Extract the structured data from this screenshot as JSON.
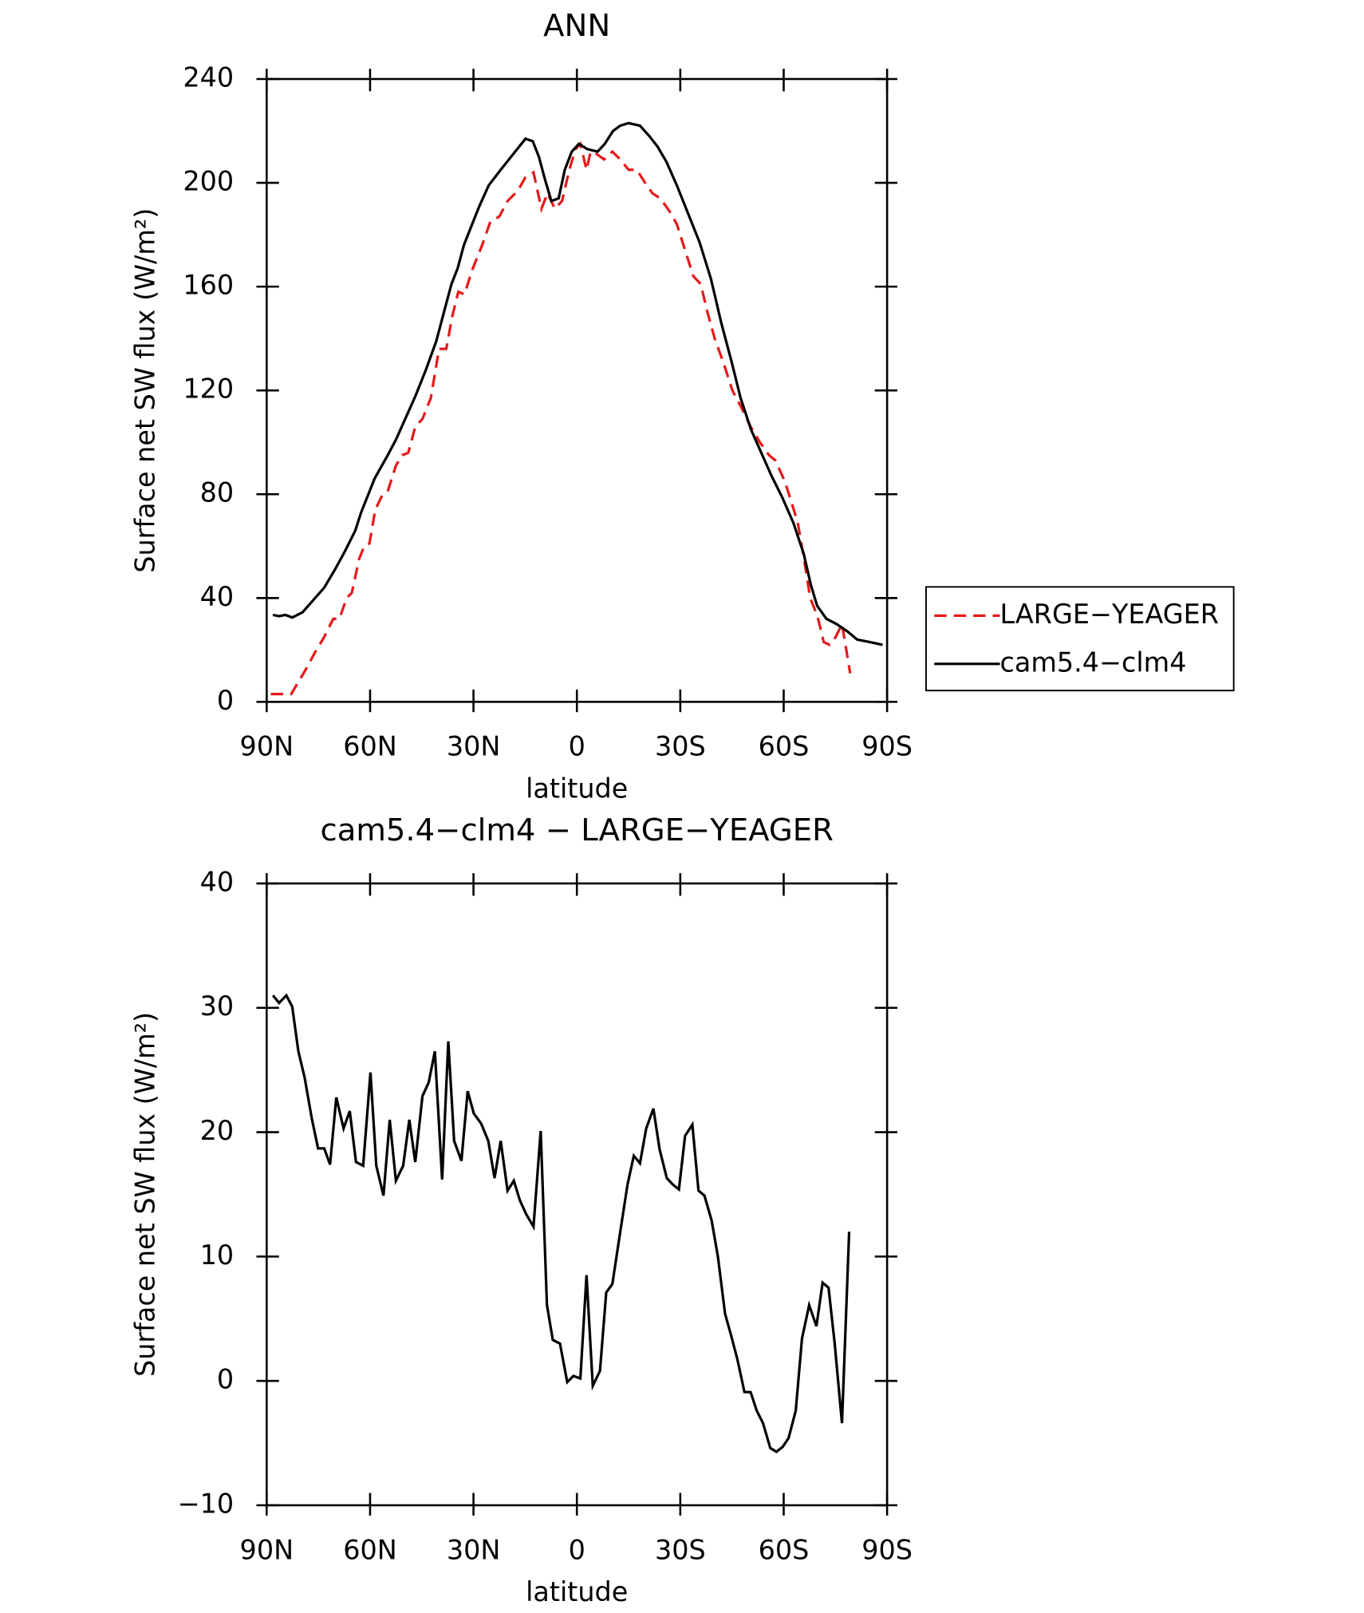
{
  "chart_data": [
    {
      "type": "line",
      "title": "ANN",
      "xlabel": "latitude",
      "ylabel": "Surface net SW flux (W/m²)",
      "xlim": [
        90,
        -90
      ],
      "xticks": [
        {
          "value": 90,
          "label": "90N"
        },
        {
          "value": 60,
          "label": "60N"
        },
        {
          "value": 30,
          "label": "30N"
        },
        0,
        {
          "value": -30,
          "label": "30S"
        },
        {
          "value": -60,
          "label": "60S"
        },
        {
          "value": -90,
          "label": "90S"
        }
      ],
      "ylim": [
        0,
        240
      ],
      "yticks": [
        0,
        40,
        80,
        120,
        160,
        200,
        240
      ],
      "legend": "right",
      "series": [
        {
          "name": "LARGE−YEAGER",
          "color": "#e41a1c",
          "dash": true,
          "x": [
            88.8,
            82.9,
            79.3,
            76.0,
            73.3,
            70.7,
            68.9,
            66.8,
            65.3,
            63.2,
            61.7,
            60.2,
            58.5,
            56.7,
            54.9,
            52.5,
            50.7,
            48.9,
            46.9,
            44.8,
            42.4,
            40.0,
            37.9,
            36.1,
            34.4,
            32.6,
            30.5,
            27.5,
            25.1,
            22.5,
            20.1,
            17.1,
            15.0,
            12.6,
            10.3,
            8.5,
            6.4,
            4.3,
            2.2,
            0.4,
            -1.0,
            -2.8,
            -4.0,
            -5.8,
            -7.9,
            -10.3,
            -12.6,
            -15.0,
            -17.4,
            -19.8,
            -21.9,
            -24.2,
            -26.9,
            -29.0,
            -31.4,
            -33.8,
            -35.9,
            -37.9,
            -40.0,
            -42.7,
            -45.1,
            -47.5,
            -50.4,
            -53.1,
            -55.8,
            -57.6,
            -60.3,
            -62.0,
            -64.1,
            -65.9,
            -67.7,
            -69.8,
            -71.6,
            -73.3,
            -75.1,
            -76.9,
            -79.3
          ],
          "values": [
            3,
            3,
            11,
            19,
            25,
            32,
            32,
            40,
            42,
            55,
            60,
            61,
            74,
            79,
            81,
            91,
            95,
            96,
            106,
            109,
            117,
            136,
            136,
            149,
            158,
            157,
            166,
            176,
            185,
            187,
            193,
            197,
            202,
            204,
            190,
            196,
            190,
            193,
            205,
            213,
            215,
            205,
            212,
            211,
            209,
            212,
            209,
            205,
            205,
            200,
            196,
            194,
            189,
            184,
            174,
            164,
            161,
            150,
            140,
            130,
            120,
            114,
            106,
            100,
            95,
            93,
            85,
            78,
            69,
            55,
            40,
            33,
            23,
            22,
            25,
            30,
            11
          ]
        },
        {
          "name": "cam5.4−clm4",
          "color": "#000000",
          "dash": false,
          "x": [
            88.2,
            86.4,
            84.6,
            82.6,
            79.6,
            76.6,
            73.3,
            70.2,
            67.3,
            64.3,
            62.6,
            60.2,
            58.7,
            56.6,
            54.9,
            52.5,
            49.8,
            46.8,
            43.8,
            40.8,
            38.2,
            36.4,
            34.6,
            32.8,
            29.8,
            28.3,
            25.6,
            22.1,
            18.5,
            14.9,
            12.8,
            11.0,
            9.2,
            7.4,
            5.3,
            3.5,
            1.5,
            -0.6,
            -3.0,
            -6.0,
            -8.1,
            -10.5,
            -12.6,
            -15.0,
            -18.3,
            -21.0,
            -23.4,
            -26.0,
            -29.0,
            -32.0,
            -35.6,
            -38.9,
            -41.9,
            -44.9,
            -47.5,
            -50.5,
            -53.5,
            -56.5,
            -59.5,
            -62.8,
            -65.8,
            -67.9,
            -69.7,
            -72.4,
            -75.3,
            -78.6,
            -81.3,
            -85.1,
            -88.7
          ],
          "values": [
            33.5,
            33,
            33.5,
            32.5,
            34.5,
            39,
            44,
            51,
            58,
            66,
            73,
            81,
            86,
            91,
            95,
            101,
            109,
            118,
            128,
            139,
            152,
            161,
            167,
            176,
            186,
            191,
            199,
            205,
            211,
            217,
            216,
            210,
            201,
            193,
            194,
            205,
            212,
            215,
            213,
            212,
            215,
            220,
            222,
            223,
            222,
            218,
            214,
            208,
            199,
            189,
            177,
            163,
            146,
            131,
            117,
            105,
            96,
            87,
            79,
            69,
            57,
            45,
            37,
            32,
            30,
            27,
            24,
            23,
            22
          ]
        }
      ]
    },
    {
      "type": "line",
      "title": "cam5.4−clm4 − LARGE−YEAGER",
      "xlabel": "latitude",
      "ylabel": "Surface net SW flux (W/m²)",
      "xlim": [
        90,
        -90
      ],
      "xticks": [
        {
          "value": 90,
          "label": "90N"
        },
        {
          "value": 60,
          "label": "60N"
        },
        {
          "value": 30,
          "label": "30N"
        },
        0,
        {
          "value": -30,
          "label": "30S"
        },
        {
          "value": -60,
          "label": "60S"
        },
        {
          "value": -90,
          "label": "90S"
        }
      ],
      "ylim": [
        -10,
        40
      ],
      "yticks": [
        {
          "value": -10,
          "label": "−10"
        },
        0,
        10,
        20,
        30,
        40
      ],
      "series": [
        {
          "name": "cam5.4−clm4 − LARGE−YEAGER",
          "color": "#000000",
          "dash": false,
          "x": [
            88.2,
            86.4,
            84.3,
            82.6,
            80.8,
            79.0,
            76.9,
            75.1,
            73.3,
            71.6,
            69.8,
            67.7,
            65.9,
            64.1,
            62.0,
            59.9,
            58.2,
            56.1,
            54.3,
            52.5,
            50.4,
            48.6,
            46.9,
            44.8,
            43.0,
            41.2,
            39.1,
            37.3,
            35.6,
            33.5,
            31.7,
            29.9,
            27.8,
            25.7,
            23.9,
            22.1,
            20.1,
            18.3,
            16.5,
            14.7,
            12.6,
            10.5,
            8.7,
            7.0,
            4.9,
            2.8,
            1.0,
            -1.0,
            -2.8,
            -4.6,
            -6.7,
            -8.5,
            -10.3,
            -12.6,
            -14.7,
            -16.5,
            -18.3,
            -20.1,
            -22.2,
            -24.0,
            -26.1,
            -27.8,
            -29.6,
            -31.4,
            -33.5,
            -35.3,
            -37.0,
            -39.1,
            -40.9,
            -43.0,
            -44.8,
            -46.6,
            -48.6,
            -50.4,
            -52.2,
            -54.0,
            -56.1,
            -57.9,
            -59.7,
            -61.4,
            -63.5,
            -65.3,
            -67.4,
            -69.5,
            -71.3,
            -73.0,
            -74.8,
            -76.9,
            -79.0
          ],
          "values": [
            31.0,
            30.4,
            31.0,
            30.1,
            26.5,
            24.4,
            21.1,
            18.7,
            18.7,
            17.4,
            22.8,
            20.3,
            21.7,
            17.6,
            17.3,
            24.8,
            17.3,
            14.9,
            21.0,
            16.1,
            17.3,
            21.0,
            17.6,
            22.9,
            24.0,
            26.5,
            16.2,
            27.3,
            19.3,
            17.7,
            23.3,
            21.5,
            20.7,
            19.3,
            16.3,
            19.3,
            15.3,
            16.1,
            14.5,
            13.4,
            12.4,
            20.1,
            6.1,
            3.3,
            3.0,
            -0.1,
            0.4,
            0.2,
            8.5,
            -0.4,
            0.8,
            7.1,
            7.8,
            12.0,
            15.8,
            18.1,
            17.5,
            20.3,
            21.9,
            18.6,
            16.3,
            15.8,
            15.4,
            19.7,
            20.6,
            15.3,
            14.9,
            12.9,
            10.0,
            5.4,
            3.6,
            1.7,
            -0.9,
            -0.9,
            -2.4,
            -3.4,
            -5.4,
            -5.7,
            -5.3,
            -4.6,
            -2.4,
            3.4,
            6.1,
            4.4,
            7.9,
            7.5,
            3.0,
            -3.4,
            12.0
          ]
        }
      ]
    }
  ]
}
